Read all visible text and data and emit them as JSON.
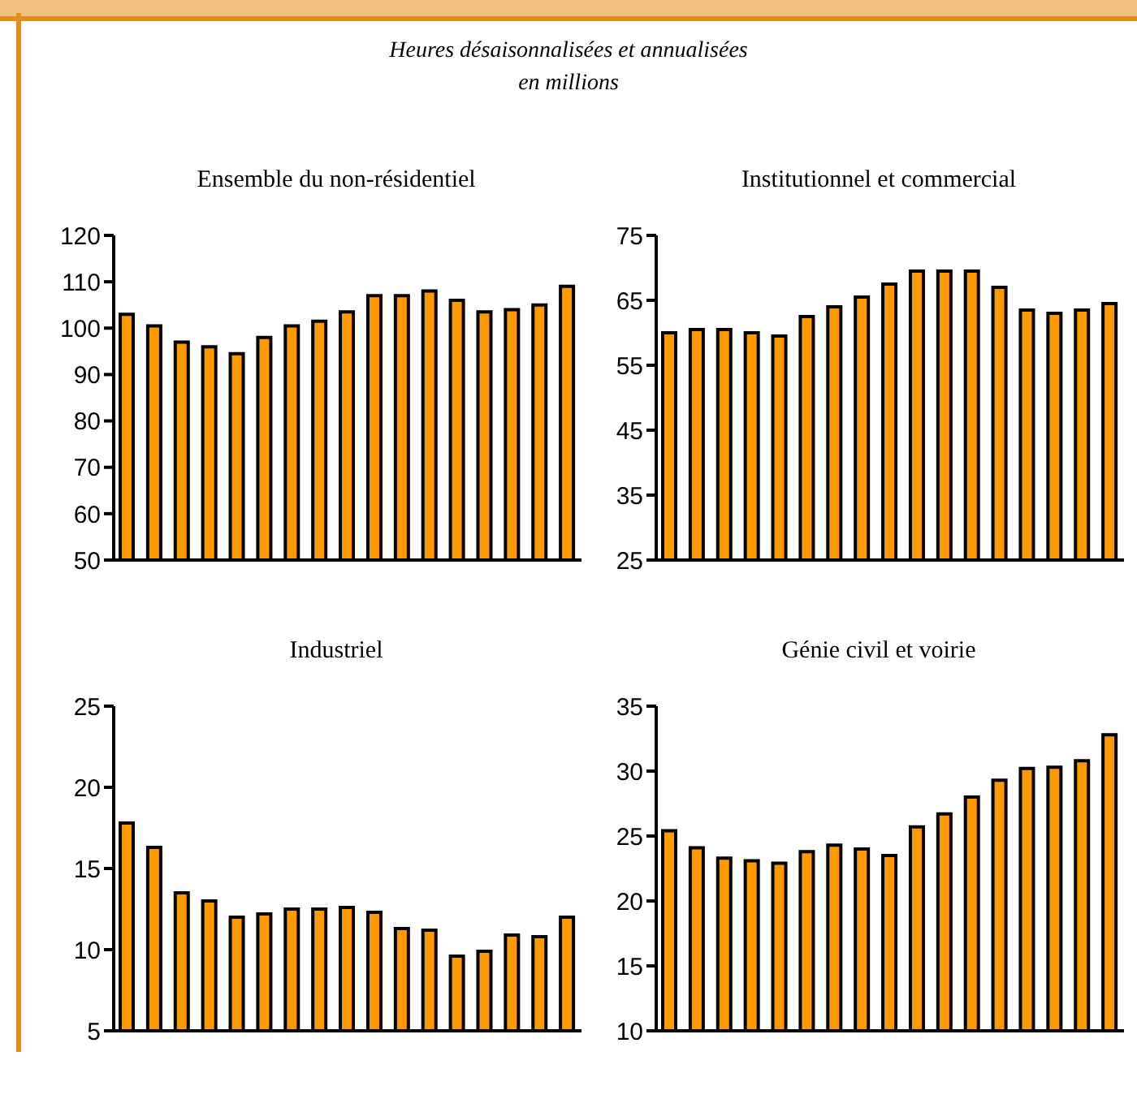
{
  "chart_data": [
    {
      "type": "bar",
      "subtitle": "Heures désaisonnalisées et annualisées\nen millions",
      "title": "Ensemble du non-résidentiel",
      "categories": [
        null,
        null,
        null,
        null,
        null,
        null,
        null,
        null,
        null,
        null,
        null,
        null,
        null,
        null,
        null,
        null,
        null
      ],
      "values": [
        103,
        100.5,
        97,
        96,
        94.5,
        98,
        100.5,
        101.5,
        103.5,
        107,
        107,
        108,
        106,
        103.5,
        104,
        105,
        109
      ],
      "color": "#ff9900",
      "ylim": [
        50,
        120
      ],
      "yticks": [
        50,
        60,
        70,
        80,
        90,
        100,
        110,
        120
      ],
      "grid": false,
      "legend": false
    },
    {
      "type": "bar",
      "title": "Institutionnel et commercial",
      "categories": [
        null,
        null,
        null,
        null,
        null,
        null,
        null,
        null,
        null,
        null,
        null,
        null,
        null,
        null,
        null,
        null,
        null
      ],
      "values": [
        60,
        60.5,
        60.5,
        60,
        59.5,
        62.5,
        64,
        65.5,
        67.5,
        69.5,
        69.5,
        69.5,
        67,
        63.5,
        63,
        63.5,
        64.5
      ],
      "color": "#ff9900",
      "ylim": [
        25,
        75
      ],
      "yticks": [
        25,
        35,
        45,
        55,
        65,
        75
      ],
      "grid": false,
      "legend": false
    },
    {
      "type": "bar",
      "title": "Industriel",
      "categories": [
        null,
        null,
        null,
        null,
        null,
        null,
        null,
        null,
        null,
        null,
        null,
        null,
        null,
        null,
        null,
        null,
        null
      ],
      "values": [
        17.8,
        16.3,
        13.5,
        13,
        12,
        12.2,
        12.5,
        12.5,
        12.6,
        12.3,
        11.3,
        11.2,
        9.6,
        9.9,
        10.9,
        10.8,
        12
      ],
      "color": "#ff9900",
      "ylim": [
        5,
        25
      ],
      "yticks": [
        5,
        10,
        15,
        20,
        25
      ],
      "grid": false,
      "legend": false
    },
    {
      "type": "bar",
      "title": "Génie civil et voirie",
      "categories": [
        null,
        null,
        null,
        null,
        null,
        null,
        null,
        null,
        null,
        null,
        null,
        null,
        null,
        null,
        null,
        null,
        null
      ],
      "values": [
        25.4,
        24.1,
        23.3,
        23.1,
        22.9,
        23.8,
        24.3,
        24,
        23.5,
        25.7,
        26.7,
        28,
        29.3,
        30.2,
        30.3,
        30.8,
        32.8
      ],
      "color": "#ff9900",
      "ylim": [
        10,
        35
      ],
      "yticks": [
        10,
        15,
        20,
        25,
        30,
        35
      ],
      "grid": false,
      "legend": false
    }
  ]
}
